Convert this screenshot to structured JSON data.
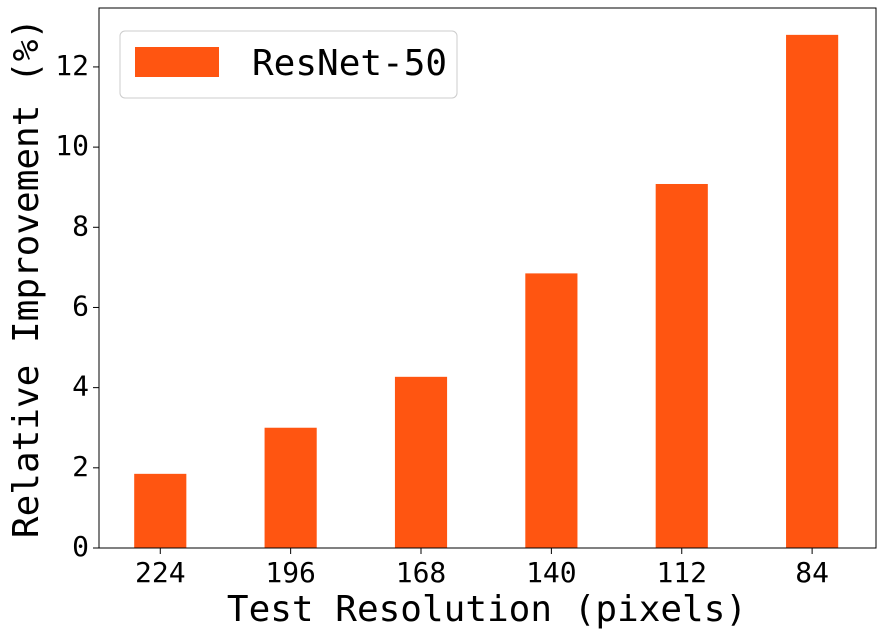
{
  "chart_data": {
    "type": "bar",
    "x_label": "Test Resolution (pixels)",
    "y_label": "Relative Improvement (%)",
    "categories": [
      "224",
      "196",
      "168",
      "140",
      "112",
      "84"
    ],
    "series": [
      {
        "name": "ResNet-50",
        "color": "#ff5511",
        "values": [
          1.85,
          3.0,
          4.27,
          6.85,
          9.08,
          12.8
        ]
      }
    ],
    "ylim": [
      0,
      13.47
    ],
    "yticks": [
      0,
      2,
      4,
      6,
      8,
      10,
      12
    ],
    "legend": "upper left",
    "grid": false
  }
}
